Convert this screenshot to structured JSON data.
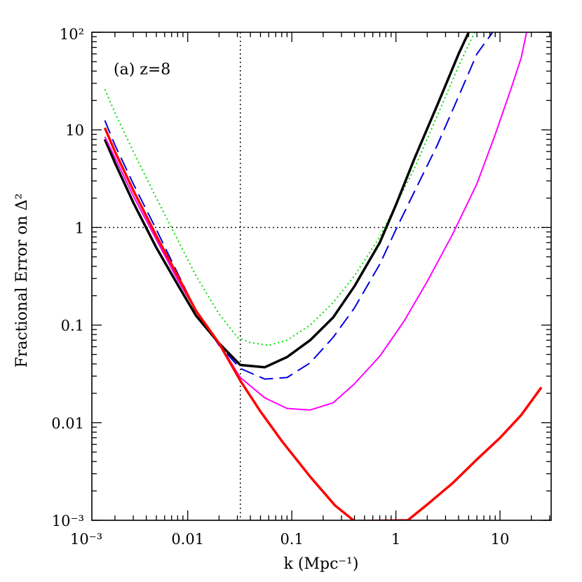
{
  "chart_data": {
    "type": "line",
    "annotation": "(a) z=8",
    "xlabel": "k (Mpc⁻¹)",
    "ylabel": "Fractional Error on Δ²",
    "xscale": "log",
    "yscale": "log",
    "xlim": [
      0.0012,
      31
    ],
    "ylim": [
      0.001,
      100
    ],
    "x_ticks": [
      {
        "value": 0.001,
        "label": "10⁻³"
      },
      {
        "value": 0.01,
        "label": "0.01"
      },
      {
        "value": 0.1,
        "label": "0.1"
      },
      {
        "value": 1,
        "label": "1"
      },
      {
        "value": 10,
        "label": "10"
      }
    ],
    "y_ticks": [
      {
        "value": 0.001,
        "label": "10⁻³"
      },
      {
        "value": 0.01,
        "label": "0.01"
      },
      {
        "value": 0.1,
        "label": "0.1"
      },
      {
        "value": 1,
        "label": "1"
      },
      {
        "value": 10,
        "label": "10"
      },
      {
        "value": 100,
        "label": "10²"
      }
    ],
    "reference_lines": [
      {
        "axis": "x",
        "value": 0.032,
        "color": "#000000",
        "style": "dotted"
      },
      {
        "axis": "y",
        "value": 1,
        "color": "#000000",
        "style": "dotted"
      }
    ],
    "series": [
      {
        "color": "#00dd00",
        "style": "dotted",
        "width": 2,
        "x": [
          0.0016,
          0.002,
          0.003,
          0.005,
          0.008,
          0.012,
          0.02,
          0.03,
          0.04,
          0.06,
          0.09,
          0.15,
          0.25,
          0.4,
          0.7,
          1.0,
          1.5,
          2.5,
          4.0,
          5.7
        ],
        "y": [
          26,
          15,
          6,
          2.0,
          0.75,
          0.32,
          0.13,
          0.075,
          0.066,
          0.062,
          0.07,
          0.1,
          0.17,
          0.32,
          0.8,
          1.7,
          4,
          14,
          45,
          100
        ]
      },
      {
        "color": "#0000dd",
        "style": "dashed",
        "width": 2,
        "x": [
          0.0016,
          0.002,
          0.003,
          0.005,
          0.008,
          0.012,
          0.02,
          0.032,
          0.055,
          0.09,
          0.15,
          0.25,
          0.4,
          0.7,
          1.0,
          1.5,
          2.5,
          4.0,
          6.0,
          8.5
        ],
        "y": [
          12.5,
          7,
          2.8,
          0.95,
          0.34,
          0.14,
          0.062,
          0.036,
          0.028,
          0.029,
          0.041,
          0.075,
          0.15,
          0.42,
          0.95,
          2.3,
          7,
          22,
          60,
          100
        ]
      },
      {
        "color": "#000000",
        "style": "solid",
        "width": 3.5,
        "x": [
          0.0016,
          0.002,
          0.003,
          0.005,
          0.008,
          0.012,
          0.02,
          0.032,
          0.055,
          0.09,
          0.15,
          0.25,
          0.4,
          0.7,
          1.0,
          1.5,
          2.5,
          4.0,
          5.0
        ],
        "y": [
          8,
          4.6,
          1.8,
          0.62,
          0.26,
          0.125,
          0.065,
          0.039,
          0.037,
          0.047,
          0.07,
          0.12,
          0.25,
          0.7,
          1.7,
          5,
          18,
          60,
          100
        ]
      },
      {
        "color": "#ff00ff",
        "style": "solid",
        "width": 2,
        "x": [
          0.0016,
          0.002,
          0.003,
          0.005,
          0.008,
          0.012,
          0.02,
          0.032,
          0.055,
          0.09,
          0.15,
          0.25,
          0.4,
          0.7,
          1.2,
          2.0,
          3.5,
          6.0,
          9.0,
          13.0,
          16.0,
          18.0
        ],
        "y": [
          8.5,
          5.2,
          2.1,
          0.75,
          0.29,
          0.14,
          0.065,
          0.029,
          0.018,
          0.014,
          0.0135,
          0.016,
          0.025,
          0.048,
          0.11,
          0.28,
          0.85,
          2.8,
          9,
          28,
          55,
          100
        ]
      },
      {
        "color": "#ff0000",
        "style": "solid",
        "width": 3.5,
        "x": [
          0.0016,
          0.002,
          0.003,
          0.005,
          0.008,
          0.012,
          0.02,
          0.032,
          0.05,
          0.08,
          0.15,
          0.26,
          0.4,
          1.3,
          2.0,
          3.5,
          6.0,
          10.0,
          16.0,
          25.0
        ],
        "y": [
          10.5,
          6,
          2.4,
          0.82,
          0.32,
          0.14,
          0.065,
          0.027,
          0.013,
          0.0065,
          0.0028,
          0.00142,
          0.00098,
          0.001,
          0.00145,
          0.0024,
          0.0042,
          0.007,
          0.012,
          0.023
        ]
      }
    ]
  }
}
